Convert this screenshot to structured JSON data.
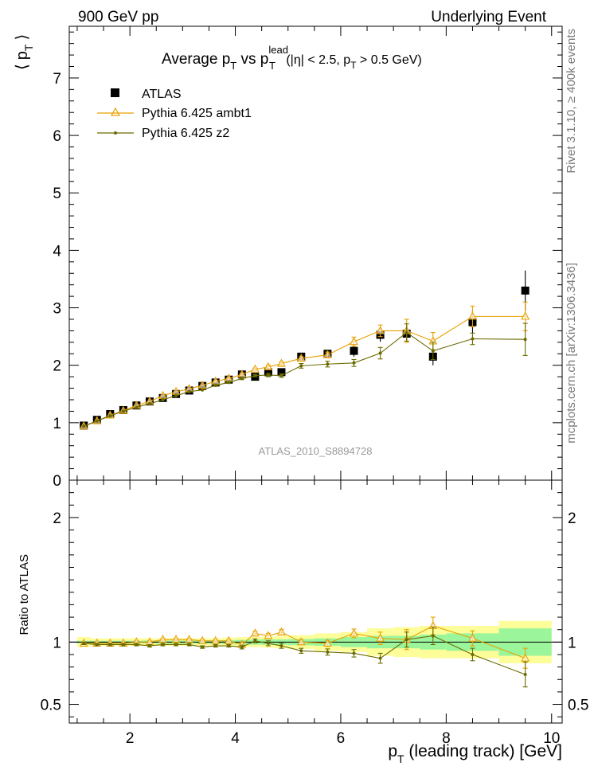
{
  "header": {
    "left": "900 GeV pp",
    "right": "Underlying Event"
  },
  "side_labels": {
    "rivet": "Rivet 3.1.10, ≥ 400k events",
    "mcplots": "mcplots.cern.ch [arXiv:1306.3436]"
  },
  "chart_data": [
    {
      "type": "scatter",
      "panel": "main",
      "title": "Average p_T vs p_T^lead (|η| < 2.5, p_T > 0.5 GeV)",
      "title_parts": {
        "a": "Average p",
        "b": "T",
        "c": " vs p",
        "d": "lead",
        "e": "T",
        "f": " (|η| < 2.5, p",
        "g": "T",
        "h": " > 0.5 GeV)"
      },
      "ylabel": "⟨ p_T ⟩",
      "ylabel_parts": {
        "open": "⟨",
        "p": "p",
        "sub": "T",
        "close": "⟩"
      },
      "xlim": [
        0.85,
        10.2
      ],
      "ylim": [
        0,
        7.9
      ],
      "yticks": [
        {
          "v": 0,
          "label": "0"
        },
        {
          "v": 1,
          "label": "1"
        },
        {
          "v": 2,
          "label": "2"
        },
        {
          "v": 3,
          "label": "3"
        },
        {
          "v": 4,
          "label": "4"
        },
        {
          "v": 5,
          "label": "5"
        },
        {
          "v": 6,
          "label": "6"
        },
        {
          "v": 7,
          "label": "7"
        }
      ],
      "watermark": "ATLAS_2010_S8894728",
      "x": [
        1.125,
        1.375,
        1.625,
        1.875,
        2.125,
        2.375,
        2.625,
        2.875,
        3.125,
        3.375,
        3.625,
        3.875,
        4.125,
        4.375,
        4.625,
        4.875,
        5.25,
        5.75,
        6.25,
        6.75,
        7.25,
        7.75,
        8.5,
        9.5
      ],
      "xerr": [
        0.125,
        0.125,
        0.125,
        0.125,
        0.125,
        0.125,
        0.125,
        0.125,
        0.125,
        0.125,
        0.125,
        0.125,
        0.125,
        0.125,
        0.125,
        0.125,
        0.25,
        0.25,
        0.25,
        0.25,
        0.25,
        0.25,
        0.5,
        0.5
      ],
      "series": [
        {
          "name": "ATLAS",
          "marker": "square",
          "color": "#000000",
          "values": [
            0.95,
            1.05,
            1.15,
            1.22,
            1.3,
            1.37,
            1.43,
            1.5,
            1.56,
            1.64,
            1.7,
            1.75,
            1.84,
            1.8,
            1.88,
            1.88,
            2.15,
            2.2,
            2.25,
            2.53,
            2.55,
            2.15,
            2.75,
            3.3
          ],
          "err": [
            0.01,
            0.01,
            0.01,
            0.01,
            0.01,
            0.01,
            0.015,
            0.015,
            0.015,
            0.02,
            0.02,
            0.02,
            0.03,
            0.03,
            0.04,
            0.04,
            0.05,
            0.07,
            0.1,
            0.12,
            0.15,
            0.15,
            0.2,
            0.35
          ]
        },
        {
          "name": "Pythia 6.425 ambt1",
          "marker": "triangle",
          "color": "#e8a000",
          "values": [
            0.94,
            1.03,
            1.13,
            1.21,
            1.3,
            1.37,
            1.47,
            1.54,
            1.59,
            1.65,
            1.72,
            1.77,
            1.84,
            1.93,
            1.97,
            2.03,
            2.12,
            2.18,
            2.41,
            2.6,
            2.6,
            2.42,
            2.85,
            2.85
          ],
          "err": [
            0.005,
            0.005,
            0.005,
            0.005,
            0.005,
            0.005,
            0.01,
            0.01,
            0.01,
            0.01,
            0.015,
            0.015,
            0.02,
            0.02,
            0.03,
            0.03,
            0.03,
            0.05,
            0.08,
            0.1,
            0.2,
            0.15,
            0.18,
            0.25
          ]
        },
        {
          "name": "Pythia 6.425 z2",
          "marker": "dot",
          "color": "#6b6b00",
          "values": [
            0.94,
            1.03,
            1.12,
            1.2,
            1.27,
            1.33,
            1.4,
            1.47,
            1.54,
            1.57,
            1.65,
            1.7,
            1.77,
            1.82,
            1.83,
            1.82,
            1.99,
            2.02,
            2.04,
            2.21,
            2.57,
            2.25,
            2.46,
            2.45
          ],
          "err": [
            0.005,
            0.005,
            0.005,
            0.005,
            0.005,
            0.005,
            0.01,
            0.01,
            0.01,
            0.01,
            0.015,
            0.015,
            0.02,
            0.02,
            0.03,
            0.03,
            0.04,
            0.05,
            0.06,
            0.1,
            0.15,
            0.15,
            0.1,
            0.28
          ]
        }
      ]
    },
    {
      "type": "scatter",
      "panel": "ratio",
      "ylabel": "Ratio to ATLAS",
      "xlabel": "p_T (leading track) [GeV]",
      "xlabel_parts": {
        "p": "p",
        "sub": "T",
        "rest": " (leading track) [GeV]"
      },
      "xlim": [
        0.85,
        10.2
      ],
      "ylim": [
        0.35,
        2.3
      ],
      "xticks": [
        {
          "v": 2,
          "label": "2"
        },
        {
          "v": 4,
          "label": "4"
        },
        {
          "v": 6,
          "label": "6"
        },
        {
          "v": 8,
          "label": "8"
        },
        {
          "v": 10,
          "label": "10"
        }
      ],
      "yticks": [
        {
          "v": 0.5,
          "label": "0.5"
        },
        {
          "v": 1,
          "label": "1"
        },
        {
          "v": 2,
          "label": "2"
        }
      ],
      "band_stat": [
        0.01,
        0.01,
        0.01,
        0.01,
        0.01,
        0.012,
        0.012,
        0.012,
        0.012,
        0.014,
        0.014,
        0.015,
        0.018,
        0.02,
        0.022,
        0.022,
        0.025,
        0.03,
        0.04,
        0.05,
        0.05,
        0.06,
        0.07,
        0.11
      ],
      "band_total": [
        0.04,
        0.03,
        0.03,
        0.03,
        0.03,
        0.03,
        0.03,
        0.03,
        0.03,
        0.03,
        0.03,
        0.035,
        0.04,
        0.04,
        0.045,
        0.05,
        0.055,
        0.07,
        0.08,
        0.11,
        0.12,
        0.13,
        0.13,
        0.17
      ],
      "series": [
        {
          "name": "Pythia 6.425 ambt1",
          "color": "#e8a000",
          "values": [
            0.99,
            0.99,
            0.99,
            0.99,
            1.0,
            1.0,
            1.02,
            1.02,
            1.02,
            1.01,
            1.01,
            1.01,
            0.98,
            1.07,
            1.05,
            1.08,
            1.0,
            0.99,
            1.07,
            1.03,
            1.02,
            1.13,
            1.03,
            0.87
          ],
          "err": [
            0.01,
            0.01,
            0.01,
            0.01,
            0.01,
            0.01,
            0.01,
            0.01,
            0.01,
            0.01,
            0.01,
            0.01,
            0.015,
            0.015,
            0.02,
            0.02,
            0.02,
            0.025,
            0.035,
            0.05,
            0.08,
            0.07,
            0.06,
            0.08
          ]
        },
        {
          "name": "Pythia 6.425 z2",
          "color": "#6b6b00",
          "values": [
            0.99,
            0.98,
            0.98,
            0.98,
            0.98,
            0.97,
            0.98,
            0.98,
            0.98,
            0.96,
            0.97,
            0.97,
            0.96,
            1.01,
            0.99,
            0.97,
            0.93,
            0.92,
            0.91,
            0.87,
            1.02,
            1.05,
            0.9,
            0.74
          ],
          "err": [
            0.01,
            0.01,
            0.01,
            0.01,
            0.01,
            0.01,
            0.01,
            0.01,
            0.01,
            0.01,
            0.01,
            0.01,
            0.015,
            0.015,
            0.02,
            0.02,
            0.02,
            0.025,
            0.03,
            0.04,
            0.06,
            0.07,
            0.05,
            0.1
          ]
        }
      ]
    }
  ]
}
